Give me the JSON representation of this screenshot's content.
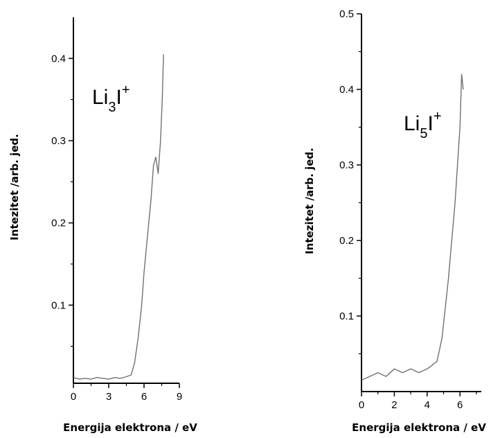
{
  "chart_data": [
    {
      "type": "line",
      "title": "",
      "annotation": {
        "base": "Li",
        "sub": "3",
        "mid": "I",
        "sup": "+"
      },
      "xlabel": "Energija elektrona / eV",
      "ylabel": "Intezitet /arb. jed.",
      "xlim": [
        0,
        9
      ],
      "ylim": [
        0.005,
        0.45
      ],
      "xticks": [
        0,
        3,
        6,
        9
      ],
      "xtick_labels": [
        "0",
        "3",
        "6",
        "9"
      ],
      "yticks": [
        0.1,
        0.2,
        0.3,
        0.4
      ],
      "ytick_labels": [
        "0.1",
        "0.2",
        "0.3",
        "0.4"
      ],
      "grid": false,
      "legend": "none",
      "series": [
        {
          "color": "#707070",
          "x": [
            0.0,
            0.5,
            1.0,
            1.5,
            2.0,
            2.5,
            3.0,
            3.5,
            4.0,
            4.5,
            4.9,
            5.2,
            5.5,
            5.8,
            6.0,
            6.2,
            6.4,
            6.6,
            6.8,
            7.0,
            7.2,
            7.4,
            7.55,
            7.65
          ],
          "y": [
            0.012,
            0.01,
            0.011,
            0.01,
            0.012,
            0.011,
            0.01,
            0.012,
            0.011,
            0.013,
            0.015,
            0.03,
            0.06,
            0.1,
            0.14,
            0.17,
            0.2,
            0.23,
            0.27,
            0.28,
            0.26,
            0.3,
            0.35,
            0.405
          ]
        }
      ]
    },
    {
      "type": "line",
      "title": "",
      "annotation": {
        "base": "Li",
        "sub": "5",
        "mid": "I",
        "sup": "+"
      },
      "xlabel": "Energija elektrona / eV",
      "ylabel": "Intezitet /arb. jed.",
      "xlim": [
        0,
        7.3
      ],
      "ylim": [
        0.0,
        0.5
      ],
      "xticks": [
        0,
        2,
        4,
        6
      ],
      "xtick_labels": [
        "0",
        "2",
        "4",
        "6"
      ],
      "yticks": [
        0.1,
        0.2,
        0.3,
        0.4,
        0.5
      ],
      "ytick_labels": [
        "0.1",
        "0.2",
        "0.3",
        "0.4",
        "0.5"
      ],
      "grid": false,
      "legend": "none",
      "series": [
        {
          "color": "#707070",
          "x": [
            0.0,
            0.5,
            1.0,
            1.5,
            2.0,
            2.5,
            3.0,
            3.5,
            4.0,
            4.3,
            4.6,
            4.9,
            5.1,
            5.3,
            5.5,
            5.7,
            5.85,
            6.0,
            6.1,
            6.2
          ],
          "y": [
            0.015,
            0.02,
            0.025,
            0.02,
            0.03,
            0.025,
            0.03,
            0.025,
            0.03,
            0.035,
            0.04,
            0.07,
            0.11,
            0.15,
            0.2,
            0.25,
            0.3,
            0.35,
            0.42,
            0.4
          ]
        }
      ]
    }
  ]
}
